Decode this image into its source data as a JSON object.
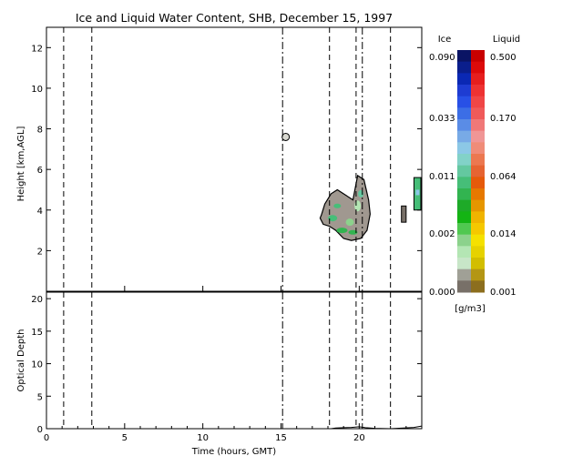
{
  "title": "Ice and Liquid Water Content, SHB, December 15, 1997",
  "colorbar": {
    "ice_label": "Ice",
    "liquid_label": "Liquid",
    "units": "[g/m3]",
    "ice_ticks": [
      "0.090",
      "0.033",
      "0.011",
      "0.002",
      "0.000"
    ],
    "liquid_ticks": [
      "0.500",
      "0.170",
      "0.064",
      "0.014",
      "0.001"
    ],
    "ice_colors": [
      "#0a1464",
      "#0a1e8c",
      "#0a28b4",
      "#1e3cd2",
      "#2850e6",
      "#3c6ee6",
      "#5a8ce6",
      "#78aae6",
      "#8cc8e6",
      "#82d2c8",
      "#64c8a0",
      "#46be78",
      "#32b450",
      "#1eaa28",
      "#14b414",
      "#50c850",
      "#8cd28c",
      "#b4e6b4",
      "#c8e6c8",
      "#a0a096",
      "#787068"
    ],
    "liquid_colors": [
      "#c80000",
      "#dc0a0a",
      "#e61e1e",
      "#ee3232",
      "#f04646",
      "#f05a5a",
      "#f07878",
      "#f09696",
      "#f08c78",
      "#ec7850",
      "#e66432",
      "#e65a0a",
      "#e67800",
      "#e69600",
      "#f0b400",
      "#f5c800",
      "#f5e100",
      "#e6d200",
      "#d2be00",
      "#b49614",
      "#8c6e1e"
    ]
  },
  "chart_data": [
    {
      "type": "heatmap",
      "title": "Ice and Liquid Water Content, SHB, December 15, 1997",
      "xlabel": "",
      "ylabel": "Height [km,AGL]",
      "xlim": [
        0,
        24
      ],
      "ylim": [
        0,
        13
      ],
      "yticks": [
        2,
        4,
        6,
        8,
        10,
        12
      ],
      "vertical_lines": [
        {
          "x": 1.1,
          "style": "dashed"
        },
        {
          "x": 2.9,
          "style": "dashed"
        },
        {
          "x": 15.1,
          "style": "dash-dot"
        },
        {
          "x": 18.1,
          "style": "dashed"
        },
        {
          "x": 19.8,
          "style": "dashed"
        },
        {
          "x": 20.2,
          "style": "dash-dot"
        },
        {
          "x": 22.0,
          "style": "dashed"
        }
      ],
      "cloud_regions": [
        {
          "x_start": 17.5,
          "x_end": 20.8,
          "outline": [
            [
              17.6,
              3.8
            ],
            [
              17.8,
              4.3
            ],
            [
              18.2,
              4.8
            ],
            [
              18.6,
              5.0
            ],
            [
              19.2,
              4.7
            ],
            [
              19.6,
              4.5
            ],
            [
              19.9,
              5.7
            ],
            [
              20.3,
              5.5
            ],
            [
              20.6,
              4.5
            ],
            [
              20.7,
              3.8
            ],
            [
              20.5,
              3.0
            ],
            [
              20.1,
              2.6
            ],
            [
              19.5,
              2.5
            ],
            [
              19.0,
              2.6
            ],
            [
              18.5,
              3.0
            ],
            [
              18.1,
              3.2
            ],
            [
              17.7,
              3.3
            ],
            [
              17.5,
              3.6
            ]
          ]
        },
        {
          "x_start": 15.1,
          "x_end": 15.5,
          "center": [
            15.3,
            7.6
          ]
        },
        {
          "x_start": 23.5,
          "x_end": 24.0,
          "center": [
            23.8,
            4.8
          ]
        },
        {
          "x_start": 22.7,
          "x_end": 23.0,
          "center": [
            22.9,
            3.8
          ]
        }
      ]
    },
    {
      "type": "line",
      "xlabel": "Time (hours, GMT)",
      "ylabel": "Optical Depth",
      "xlim": [
        0,
        24
      ],
      "ylim": [
        0,
        21
      ],
      "xticks": [
        0,
        5,
        10,
        15,
        20
      ],
      "yticks": [
        0,
        5,
        10,
        15,
        20
      ],
      "series": [
        {
          "x": [
            0,
            18.2,
            18.5,
            19.0,
            19.5,
            20.0,
            20.4,
            21.0,
            22.0,
            23.5,
            24.0
          ],
          "values": [
            0,
            0,
            0.1,
            0.15,
            0.2,
            0.3,
            0.15,
            0.05,
            0,
            0.2,
            0.4
          ]
        }
      ]
    }
  ]
}
